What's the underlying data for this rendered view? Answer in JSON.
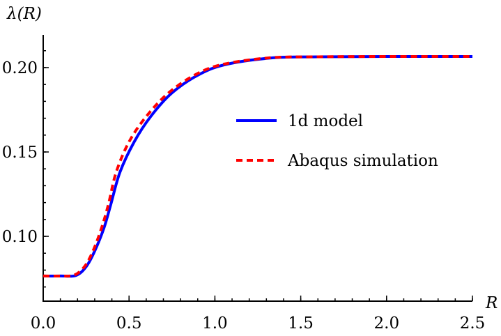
{
  "chart_data": {
    "type": "line",
    "xlabel": "R",
    "ylabel": "λ(R)",
    "xlim": [
      0,
      2.5
    ],
    "ylim": [
      0.0616,
      0.2194
    ],
    "x_ticks": [
      "0.0",
      "0.5",
      "1.0",
      "1.5",
      "2.0",
      "2.5"
    ],
    "x_tick_values": [
      0,
      0.5,
      1.0,
      1.5,
      2.0,
      2.5
    ],
    "y_ticks": [
      "0.10",
      "0.15",
      "0.20"
    ],
    "y_tick_values": [
      0.1,
      0.15,
      0.2
    ],
    "x_minor_step": 0.1,
    "y_minor_step": 0.01,
    "grid": false,
    "legend_position": "right-middle",
    "series": [
      {
        "name": "1d model",
        "color": "#0000ff",
        "style": "solid",
        "x": [
          0,
          0.1,
          0.19,
          0.25,
          0.3,
          0.354,
          0.394,
          0.447,
          0.53,
          0.626,
          0.75,
          0.91,
          1.07,
          1.34,
          1.6,
          2.0,
          2.5
        ],
        "y": [
          0.0765,
          0.0765,
          0.0768,
          0.082,
          0.0913,
          0.105,
          0.119,
          0.138,
          0.156,
          0.171,
          0.185,
          0.196,
          0.202,
          0.2058,
          0.2064,
          0.2066,
          0.2066
        ]
      },
      {
        "name": "Abaqus simulation",
        "color": "#ff0000",
        "style": "dashed",
        "x": [
          0,
          0.1,
          0.18,
          0.24,
          0.29,
          0.34,
          0.38,
          0.425,
          0.5,
          0.6,
          0.73,
          0.89,
          1.05,
          1.32,
          1.6,
          2.0,
          2.5
        ],
        "y": [
          0.0765,
          0.0765,
          0.077,
          0.082,
          0.0913,
          0.105,
          0.119,
          0.138,
          0.156,
          0.171,
          0.185,
          0.196,
          0.202,
          0.2058,
          0.2064,
          0.2066,
          0.2066
        ]
      }
    ]
  }
}
